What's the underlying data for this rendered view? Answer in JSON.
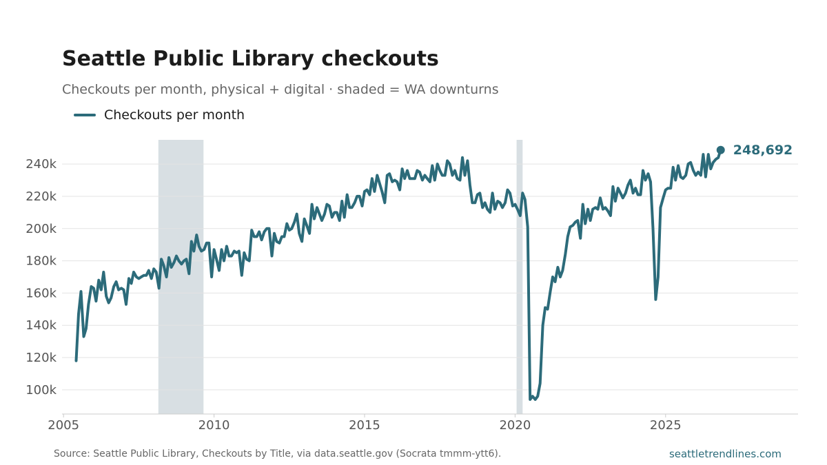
{
  "title": "Seattle Public Library checkouts",
  "subtitle": "Checkouts per month, physical + digital · shaded = WA downturns",
  "legend_label": "Checkouts per month",
  "footer": {
    "source": "Source: Seattle Public Library, Checkouts by Title, via data.seattle.gov (Socrata tmmm-ytt6).",
    "site": "seattletrendlines.com"
  },
  "colors": {
    "line": "#2c6b7a",
    "shade": "#d8dfe3",
    "grid": "#e3e3e3",
    "axis": "#cccccc"
  },
  "chart_data": {
    "type": "line",
    "title": "Seattle Public Library checkouts",
    "subtitle": "Checkouts per month, physical + digital · shaded = WA downturns",
    "xlim": [
      2004.95,
      2029.4
    ],
    "ylim": [
      85000,
      255000
    ],
    "x_ticks": [
      2005,
      2010,
      2015,
      2020,
      2025
    ],
    "x_tick_labels": [
      "2005",
      "2010",
      "2015",
      "2020",
      "2025"
    ],
    "y_ticks": [
      100000,
      120000,
      140000,
      160000,
      180000,
      200000,
      220000,
      240000
    ],
    "y_tick_labels": [
      "100k",
      "120k",
      "140k",
      "160k",
      "180k",
      "200k",
      "220k",
      "240k"
    ],
    "grid": "horizontal",
    "legend": "top-left",
    "shaded_ranges": [
      [
        2008.15,
        2009.65
      ],
      [
        2020.05,
        2020.25
      ]
    ],
    "end_label": "248,692",
    "series": [
      {
        "name": "Checkouts per month",
        "points": [
          [
            2005.42,
            118000
          ],
          [
            2005.5,
            147000
          ],
          [
            2005.58,
            161000
          ],
          [
            2005.67,
            133000
          ],
          [
            2005.75,
            138000
          ],
          [
            2005.83,
            153000
          ],
          [
            2005.92,
            164000
          ],
          [
            2006.0,
            163000
          ],
          [
            2006.08,
            155000
          ],
          [
            2006.17,
            168000
          ],
          [
            2006.25,
            162000
          ],
          [
            2006.33,
            173000
          ],
          [
            2006.42,
            158000
          ],
          [
            2006.5,
            154000
          ],
          [
            2006.58,
            157000
          ],
          [
            2006.67,
            164000
          ],
          [
            2006.75,
            167000
          ],
          [
            2006.83,
            162000
          ],
          [
            2006.92,
            163000
          ],
          [
            2007.0,
            162000
          ],
          [
            2007.08,
            153000
          ],
          [
            2007.17,
            169000
          ],
          [
            2007.25,
            166000
          ],
          [
            2007.33,
            173000
          ],
          [
            2007.42,
            170000
          ],
          [
            2007.5,
            169000
          ],
          [
            2007.58,
            170000
          ],
          [
            2007.67,
            171000
          ],
          [
            2007.75,
            171000
          ],
          [
            2007.83,
            174000
          ],
          [
            2007.92,
            169000
          ],
          [
            2008.0,
            175000
          ],
          [
            2008.08,
            173000
          ],
          [
            2008.17,
            163000
          ],
          [
            2008.25,
            181000
          ],
          [
            2008.33,
            177000
          ],
          [
            2008.42,
            170000
          ],
          [
            2008.5,
            182000
          ],
          [
            2008.58,
            176000
          ],
          [
            2008.67,
            179000
          ],
          [
            2008.75,
            183000
          ],
          [
            2008.83,
            180000
          ],
          [
            2008.92,
            178000
          ],
          [
            2009.0,
            180000
          ],
          [
            2009.08,
            181000
          ],
          [
            2009.17,
            172000
          ],
          [
            2009.25,
            192000
          ],
          [
            2009.33,
            186000
          ],
          [
            2009.42,
            196000
          ],
          [
            2009.5,
            189000
          ],
          [
            2009.58,
            186000
          ],
          [
            2009.67,
            187000
          ],
          [
            2009.75,
            191000
          ],
          [
            2009.83,
            191000
          ],
          [
            2009.92,
            170000
          ],
          [
            2010.0,
            187000
          ],
          [
            2010.08,
            181000
          ],
          [
            2010.17,
            174000
          ],
          [
            2010.25,
            187000
          ],
          [
            2010.33,
            180000
          ],
          [
            2010.42,
            189000
          ],
          [
            2010.5,
            183000
          ],
          [
            2010.58,
            183000
          ],
          [
            2010.67,
            186000
          ],
          [
            2010.75,
            185000
          ],
          [
            2010.83,
            186000
          ],
          [
            2010.92,
            171000
          ],
          [
            2011.0,
            185000
          ],
          [
            2011.08,
            181000
          ],
          [
            2011.17,
            180000
          ],
          [
            2011.25,
            199000
          ],
          [
            2011.33,
            195000
          ],
          [
            2011.42,
            195000
          ],
          [
            2011.5,
            198000
          ],
          [
            2011.58,
            193000
          ],
          [
            2011.67,
            198000
          ],
          [
            2011.75,
            200000
          ],
          [
            2011.83,
            200000
          ],
          [
            2011.92,
            183000
          ],
          [
            2012.0,
            197000
          ],
          [
            2012.08,
            192000
          ],
          [
            2012.17,
            191000
          ],
          [
            2012.25,
            195000
          ],
          [
            2012.33,
            195000
          ],
          [
            2012.42,
            203000
          ],
          [
            2012.5,
            199000
          ],
          [
            2012.58,
            200000
          ],
          [
            2012.67,
            204000
          ],
          [
            2012.75,
            209000
          ],
          [
            2012.83,
            197000
          ],
          [
            2012.92,
            192000
          ],
          [
            2013.0,
            206000
          ],
          [
            2013.08,
            202000
          ],
          [
            2013.17,
            197000
          ],
          [
            2013.25,
            215000
          ],
          [
            2013.33,
            206000
          ],
          [
            2013.42,
            213000
          ],
          [
            2013.5,
            209000
          ],
          [
            2013.58,
            205000
          ],
          [
            2013.67,
            209000
          ],
          [
            2013.75,
            215000
          ],
          [
            2013.83,
            214000
          ],
          [
            2013.92,
            207000
          ],
          [
            2014.0,
            210000
          ],
          [
            2014.08,
            210000
          ],
          [
            2014.17,
            205000
          ],
          [
            2014.25,
            217000
          ],
          [
            2014.33,
            207000
          ],
          [
            2014.42,
            221000
          ],
          [
            2014.5,
            213000
          ],
          [
            2014.58,
            213000
          ],
          [
            2014.67,
            216000
          ],
          [
            2014.75,
            220000
          ],
          [
            2014.83,
            220000
          ],
          [
            2014.92,
            214000
          ],
          [
            2015.0,
            223000
          ],
          [
            2015.08,
            224000
          ],
          [
            2015.17,
            221000
          ],
          [
            2015.25,
            231000
          ],
          [
            2015.33,
            223000
          ],
          [
            2015.42,
            233000
          ],
          [
            2015.5,
            228000
          ],
          [
            2015.58,
            223000
          ],
          [
            2015.67,
            216000
          ],
          [
            2015.75,
            233000
          ],
          [
            2015.83,
            234000
          ],
          [
            2015.92,
            229000
          ],
          [
            2016.0,
            230000
          ],
          [
            2016.08,
            229000
          ],
          [
            2016.17,
            224000
          ],
          [
            2016.25,
            237000
          ],
          [
            2016.33,
            231000
          ],
          [
            2016.42,
            236000
          ],
          [
            2016.5,
            231000
          ],
          [
            2016.58,
            231000
          ],
          [
            2016.67,
            231000
          ],
          [
            2016.75,
            236000
          ],
          [
            2016.83,
            235000
          ],
          [
            2016.92,
            230000
          ],
          [
            2017.0,
            233000
          ],
          [
            2017.08,
            231000
          ],
          [
            2017.17,
            229000
          ],
          [
            2017.25,
            239000
          ],
          [
            2017.33,
            230000
          ],
          [
            2017.42,
            240000
          ],
          [
            2017.5,
            236000
          ],
          [
            2017.58,
            233000
          ],
          [
            2017.67,
            233000
          ],
          [
            2017.75,
            242000
          ],
          [
            2017.83,
            240000
          ],
          [
            2017.92,
            233000
          ],
          [
            2018.0,
            236000
          ],
          [
            2018.08,
            231000
          ],
          [
            2018.17,
            230000
          ],
          [
            2018.25,
            244000
          ],
          [
            2018.33,
            233000
          ],
          [
            2018.42,
            242000
          ],
          [
            2018.5,
            227000
          ],
          [
            2018.58,
            216000
          ],
          [
            2018.67,
            216000
          ],
          [
            2018.75,
            221000
          ],
          [
            2018.83,
            222000
          ],
          [
            2018.92,
            213000
          ],
          [
            2019.0,
            216000
          ],
          [
            2019.08,
            212000
          ],
          [
            2019.17,
            210000
          ],
          [
            2019.25,
            222000
          ],
          [
            2019.33,
            212000
          ],
          [
            2019.42,
            217000
          ],
          [
            2019.5,
            216000
          ],
          [
            2019.58,
            213000
          ],
          [
            2019.67,
            216000
          ],
          [
            2019.75,
            224000
          ],
          [
            2019.83,
            222000
          ],
          [
            2019.92,
            214000
          ],
          [
            2020.0,
            215000
          ],
          [
            2020.08,
            212000
          ],
          [
            2020.17,
            208000
          ],
          [
            2020.25,
            222000
          ],
          [
            2020.33,
            218000
          ],
          [
            2020.42,
            201000
          ],
          [
            2020.5,
            94000
          ],
          [
            2020.58,
            96000
          ],
          [
            2020.67,
            94000
          ],
          [
            2020.75,
            96000
          ],
          [
            2020.83,
            104000
          ],
          [
            2020.92,
            140000
          ],
          [
            2021.0,
            151000
          ],
          [
            2021.08,
            150000
          ],
          [
            2021.17,
            161000
          ],
          [
            2021.25,
            170000
          ],
          [
            2021.33,
            167000
          ],
          [
            2021.42,
            176000
          ],
          [
            2021.5,
            170000
          ],
          [
            2021.58,
            174000
          ],
          [
            2021.67,
            184000
          ],
          [
            2021.75,
            195000
          ],
          [
            2021.83,
            201000
          ],
          [
            2021.92,
            202000
          ],
          [
            2022.0,
            204000
          ],
          [
            2022.08,
            205000
          ],
          [
            2022.17,
            194000
          ],
          [
            2022.25,
            215000
          ],
          [
            2022.33,
            203000
          ],
          [
            2022.42,
            212000
          ],
          [
            2022.5,
            205000
          ],
          [
            2022.58,
            212000
          ],
          [
            2022.67,
            213000
          ],
          [
            2022.75,
            212000
          ],
          [
            2022.83,
            219000
          ],
          [
            2022.92,
            212000
          ],
          [
            2023.0,
            213000
          ],
          [
            2023.08,
            211000
          ],
          [
            2023.17,
            208000
          ],
          [
            2023.25,
            226000
          ],
          [
            2023.33,
            217000
          ],
          [
            2023.42,
            225000
          ],
          [
            2023.5,
            222000
          ],
          [
            2023.58,
            219000
          ],
          [
            2023.67,
            222000
          ],
          [
            2023.75,
            227000
          ],
          [
            2023.83,
            230000
          ],
          [
            2023.92,
            222000
          ],
          [
            2024.0,
            225000
          ],
          [
            2024.08,
            221000
          ],
          [
            2024.17,
            221000
          ],
          [
            2024.25,
            236000
          ],
          [
            2024.33,
            230000
          ],
          [
            2024.42,
            234000
          ],
          [
            2024.5,
            229000
          ],
          [
            2024.58,
            200000
          ],
          [
            2024.67,
            156000
          ],
          [
            2024.75,
            170000
          ],
          [
            2024.83,
            213000
          ],
          [
            2024.92,
            219000
          ],
          [
            2025.0,
            224000
          ],
          [
            2025.08,
            225000
          ],
          [
            2025.17,
            225000
          ],
          [
            2025.25,
            238000
          ],
          [
            2025.33,
            230000
          ],
          [
            2025.42,
            239000
          ],
          [
            2025.5,
            232000
          ],
          [
            2025.58,
            231000
          ],
          [
            2025.67,
            233000
          ],
          [
            2025.75,
            240000
          ],
          [
            2025.83,
            241000
          ],
          [
            2025.92,
            236000
          ],
          [
            2026.0,
            233000
          ],
          [
            2026.08,
            235000
          ],
          [
            2026.17,
            233000
          ],
          [
            2026.25,
            246000
          ],
          [
            2026.33,
            232000
          ],
          [
            2026.42,
            246000
          ],
          [
            2026.5,
            237000
          ],
          [
            2026.58,
            241000
          ],
          [
            2026.67,
            243000
          ],
          [
            2026.75,
            244000
          ],
          [
            2026.83,
            248692
          ]
        ]
      }
    ]
  }
}
